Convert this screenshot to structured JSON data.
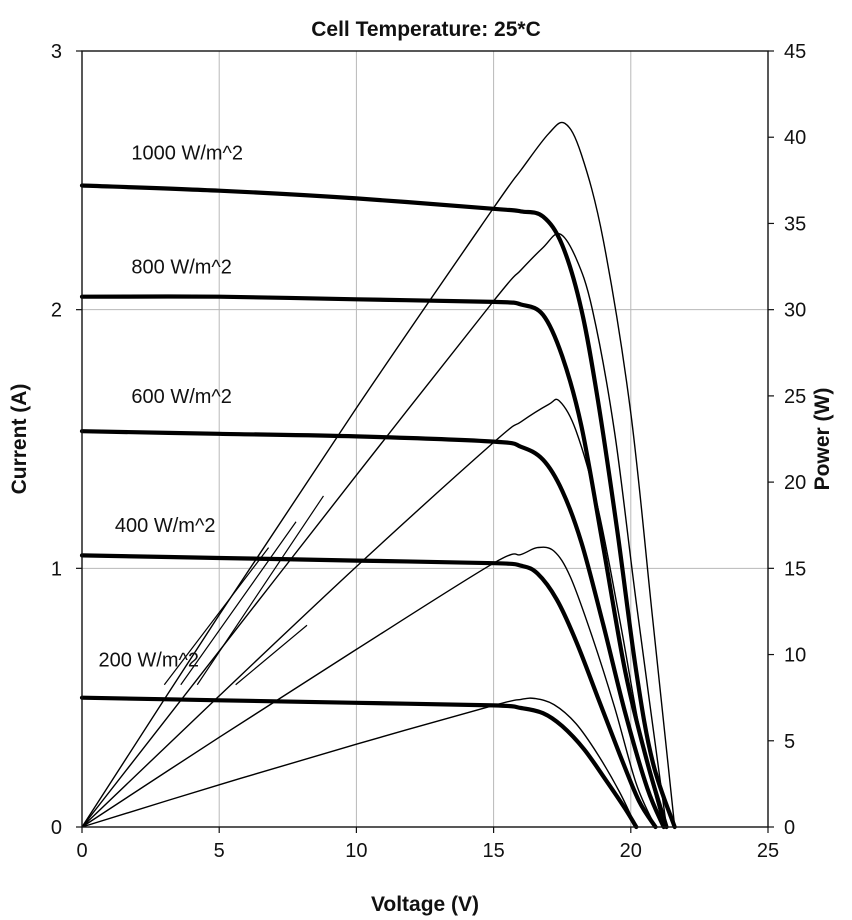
{
  "chart_data": {
    "type": "line",
    "title": "Cell Temperature: 25*C",
    "xlabel": "Voltage (V)",
    "ylabel": "Current (A)",
    "y2label": "Power (W)",
    "xlim": [
      0,
      25
    ],
    "ylim": [
      0,
      3
    ],
    "y2lim": [
      0,
      45
    ],
    "x_ticks": [
      "0",
      "5",
      "10",
      "15",
      "20",
      "25"
    ],
    "y_ticks": [
      "0",
      "1",
      "2",
      "3"
    ],
    "y2_ticks": [
      "0",
      "5",
      "10",
      "15",
      "20",
      "25",
      "30",
      "35",
      "40",
      "45"
    ],
    "grid": true,
    "series": [
      {
        "name": "1000 W/m^2",
        "iv": [
          [
            0,
            2.48
          ],
          [
            5,
            2.46
          ],
          [
            10,
            2.43
          ],
          [
            15,
            2.39
          ],
          [
            16,
            2.38
          ],
          [
            16.8,
            2.36
          ],
          [
            17.5,
            2.25
          ],
          [
            18.2,
            2.0
          ],
          [
            18.8,
            1.65
          ],
          [
            19.5,
            1.15
          ],
          [
            20.2,
            0.6
          ],
          [
            20.8,
            0.25
          ],
          [
            21.6,
            0.0
          ]
        ],
        "power": [
          [
            0,
            0
          ],
          [
            5,
            12.3
          ],
          [
            10,
            24.3
          ],
          [
            15,
            35.9
          ],
          [
            16,
            38.1
          ],
          [
            17,
            40.2
          ],
          [
            17.6,
            40.8
          ],
          [
            18.2,
            39.0
          ],
          [
            19.0,
            34.0
          ],
          [
            20.0,
            24.0
          ],
          [
            20.8,
            12.0
          ],
          [
            21.6,
            0.0
          ]
        ]
      },
      {
        "name": "800 W/m^2",
        "iv": [
          [
            0,
            2.05
          ],
          [
            5,
            2.05
          ],
          [
            10,
            2.04
          ],
          [
            15,
            2.03
          ],
          [
            16,
            2.02
          ],
          [
            16.8,
            1.98
          ],
          [
            17.5,
            1.82
          ],
          [
            18.2,
            1.55
          ],
          [
            19.0,
            1.08
          ],
          [
            19.8,
            0.6
          ],
          [
            20.6,
            0.25
          ],
          [
            21.3,
            0.0
          ]
        ],
        "power": [
          [
            0,
            0
          ],
          [
            5,
            10.2
          ],
          [
            10,
            20.4
          ],
          [
            15,
            30.5
          ],
          [
            16,
            32.3
          ],
          [
            16.8,
            33.6
          ],
          [
            17.4,
            34.4
          ],
          [
            18.0,
            33.0
          ],
          [
            18.6,
            30.0
          ],
          [
            19.4,
            23.0
          ],
          [
            20.2,
            13.0
          ],
          [
            21.3,
            0.0
          ]
        ]
      },
      {
        "name": "600 W/m^2",
        "iv": [
          [
            0,
            1.53
          ],
          [
            5,
            1.52
          ],
          [
            10,
            1.51
          ],
          [
            15,
            1.49
          ],
          [
            16,
            1.47
          ],
          [
            16.8,
            1.42
          ],
          [
            17.5,
            1.3
          ],
          [
            18.2,
            1.1
          ],
          [
            19.0,
            0.78
          ],
          [
            19.8,
            0.44
          ],
          [
            20.6,
            0.15
          ],
          [
            21.2,
            0.0
          ]
        ],
        "power": [
          [
            0,
            0
          ],
          [
            5,
            7.6
          ],
          [
            10,
            15.1
          ],
          [
            15,
            22.3
          ],
          [
            16,
            23.5
          ],
          [
            17,
            24.5
          ],
          [
            17.4,
            24.7
          ],
          [
            18.0,
            23.0
          ],
          [
            18.8,
            18.5
          ],
          [
            19.6,
            12.0
          ],
          [
            20.4,
            5.0
          ],
          [
            21.2,
            0.0
          ]
        ]
      },
      {
        "name": "400 W/m^2",
        "iv": [
          [
            0,
            1.05
          ],
          [
            5,
            1.04
          ],
          [
            10,
            1.03
          ],
          [
            15,
            1.02
          ],
          [
            16,
            1.01
          ],
          [
            16.6,
            0.98
          ],
          [
            17.3,
            0.88
          ],
          [
            18.0,
            0.72
          ],
          [
            18.8,
            0.5
          ],
          [
            19.6,
            0.28
          ],
          [
            20.3,
            0.1
          ],
          [
            20.9,
            0.0
          ]
        ],
        "power": [
          [
            0,
            0
          ],
          [
            5,
            5.2
          ],
          [
            10,
            10.3
          ],
          [
            15,
            15.3
          ],
          [
            16,
            15.8
          ],
          [
            16.6,
            16.2
          ],
          [
            17.2,
            16.0
          ],
          [
            17.8,
            14.5
          ],
          [
            18.6,
            11.0
          ],
          [
            19.4,
            7.0
          ],
          [
            20.2,
            2.5
          ],
          [
            20.9,
            0.0
          ]
        ]
      },
      {
        "name": "200 W/m^2",
        "iv": [
          [
            0,
            0.5
          ],
          [
            5,
            0.49
          ],
          [
            10,
            0.48
          ],
          [
            15,
            0.47
          ],
          [
            16,
            0.46
          ],
          [
            16.8,
            0.44
          ],
          [
            17.5,
            0.39
          ],
          [
            18.3,
            0.3
          ],
          [
            19.1,
            0.18
          ],
          [
            19.8,
            0.07
          ],
          [
            20.2,
            0.0
          ]
        ],
        "power": [
          [
            0,
            0
          ],
          [
            5,
            2.45
          ],
          [
            10,
            4.8
          ],
          [
            15,
            7.05
          ],
          [
            16,
            7.4
          ],
          [
            16.5,
            7.45
          ],
          [
            17.2,
            7.1
          ],
          [
            18.0,
            6.0
          ],
          [
            18.8,
            4.2
          ],
          [
            19.6,
            2.0
          ],
          [
            20.2,
            0.0
          ]
        ]
      }
    ],
    "annotations": [
      {
        "text": "1000 W/m^2",
        "x": 1.8,
        "y": 2.58
      },
      {
        "text": "800 W/m^2",
        "x": 1.8,
        "y": 2.14
      },
      {
        "text": "600 W/m^2",
        "x": 1.8,
        "y": 1.64
      },
      {
        "text": "400 W/m^2",
        "x": 1.2,
        "y": 1.14
      },
      {
        "text": "200 W/m^2",
        "x": 0.6,
        "y": 0.62
      }
    ]
  }
}
